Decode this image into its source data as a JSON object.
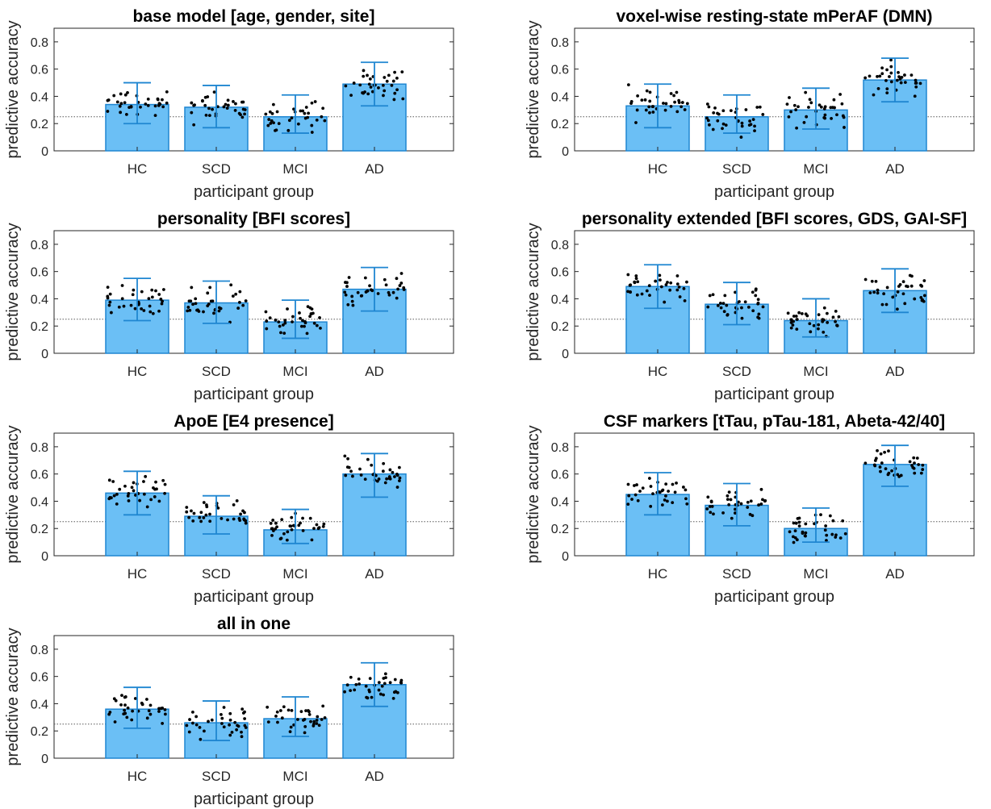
{
  "figure": {
    "colors": {
      "bar_fill": "#6bbff5",
      "bar_edge": "#1f86d1",
      "errorbar": "#1f86d1",
      "points": "#000000",
      "chance_line": "#595959",
      "axis": "#262626"
    }
  },
  "chart_data": [
    {
      "type": "bar",
      "title": "base model [age, gender, site]",
      "xlabel": "participant group",
      "ylabel": "predictive accuracy",
      "categories": [
        "HC",
        "SCD",
        "MCI",
        "AD"
      ],
      "values": [
        0.34,
        0.32,
        0.25,
        0.49
      ],
      "error_low": [
        0.2,
        0.17,
        0.13,
        0.33
      ],
      "error_high": [
        0.5,
        0.48,
        0.41,
        0.65
      ],
      "chance_level": 0.25,
      "ylim": [
        0,
        0.9
      ],
      "yticks": [
        "0",
        "0.2",
        "0.4",
        "0.6",
        "0.8"
      ],
      "grid": false
    },
    {
      "type": "bar",
      "title": "voxel-wise resting-state mPerAF (DMN)",
      "xlabel": "participant group",
      "ylabel": "predictive accuracy",
      "categories": [
        "HC",
        "SCD",
        "MCI",
        "AD"
      ],
      "values": [
        0.33,
        0.25,
        0.3,
        0.52
      ],
      "error_low": [
        0.17,
        0.13,
        0.16,
        0.36
      ],
      "error_high": [
        0.49,
        0.41,
        0.46,
        0.68
      ],
      "chance_level": 0.25,
      "ylim": [
        0,
        0.9
      ],
      "yticks": [
        "0",
        "0.2",
        "0.4",
        "0.6",
        "0.8"
      ],
      "grid": false
    },
    {
      "type": "bar",
      "title": "personality [BFI scores]",
      "xlabel": "participant group",
      "ylabel": "predictive accuracy",
      "categories": [
        "HC",
        "SCD",
        "MCI",
        "AD"
      ],
      "values": [
        0.39,
        0.37,
        0.23,
        0.47
      ],
      "error_low": [
        0.24,
        0.22,
        0.11,
        0.31
      ],
      "error_high": [
        0.55,
        0.53,
        0.39,
        0.63
      ],
      "chance_level": 0.25,
      "ylim": [
        0,
        0.9
      ],
      "yticks": [
        "0",
        "0.2",
        "0.4",
        "0.6",
        "0.8"
      ],
      "grid": false
    },
    {
      "type": "bar",
      "title": "personality extended [BFI scores, GDS, GAI-SF]",
      "xlabel": "participant group",
      "ylabel": "predictive accuracy",
      "categories": [
        "HC",
        "SCD",
        "MCI",
        "AD"
      ],
      "values": [
        0.49,
        0.36,
        0.24,
        0.46
      ],
      "error_low": [
        0.33,
        0.21,
        0.12,
        0.3
      ],
      "error_high": [
        0.65,
        0.52,
        0.4,
        0.62
      ],
      "chance_level": 0.25,
      "ylim": [
        0,
        0.9
      ],
      "yticks": [
        "0",
        "0.2",
        "0.4",
        "0.6",
        "0.8"
      ],
      "grid": false
    },
    {
      "type": "bar",
      "title": "ApoE [E4 presence]",
      "xlabel": "participant group",
      "ylabel": "predictive accuracy",
      "categories": [
        "HC",
        "SCD",
        "MCI",
        "AD"
      ],
      "values": [
        0.46,
        0.29,
        0.19,
        0.6
      ],
      "error_low": [
        0.3,
        0.16,
        0.09,
        0.43
      ],
      "error_high": [
        0.62,
        0.44,
        0.34,
        0.75
      ],
      "chance_level": 0.25,
      "ylim": [
        0,
        0.9
      ],
      "yticks": [
        "0",
        "0.2",
        "0.4",
        "0.6",
        "0.8"
      ],
      "grid": false
    },
    {
      "type": "bar",
      "title": "CSF markers [tTau, pTau-181, Abeta-42/40]",
      "xlabel": "participant group",
      "ylabel": "predictive accuracy",
      "categories": [
        "HC",
        "SCD",
        "MCI",
        "AD"
      ],
      "values": [
        0.45,
        0.37,
        0.2,
        0.67
      ],
      "error_low": [
        0.3,
        0.22,
        0.1,
        0.51
      ],
      "error_high": [
        0.61,
        0.53,
        0.35,
        0.81
      ],
      "chance_level": 0.25,
      "ylim": [
        0,
        0.9
      ],
      "yticks": [
        "0",
        "0.2",
        "0.4",
        "0.6",
        "0.8"
      ],
      "grid": false
    },
    {
      "type": "bar",
      "title": "all in one",
      "xlabel": "participant group",
      "ylabel": "predictive accuracy",
      "categories": [
        "HC",
        "SCD",
        "MCI",
        "AD"
      ],
      "values": [
        0.36,
        0.26,
        0.29,
        0.54
      ],
      "error_low": [
        0.22,
        0.13,
        0.16,
        0.38
      ],
      "error_high": [
        0.52,
        0.42,
        0.45,
        0.7
      ],
      "chance_level": 0.25,
      "ylim": [
        0,
        0.9
      ],
      "yticks": [
        "0",
        "0.2",
        "0.4",
        "0.6",
        "0.8"
      ],
      "grid": false
    }
  ]
}
